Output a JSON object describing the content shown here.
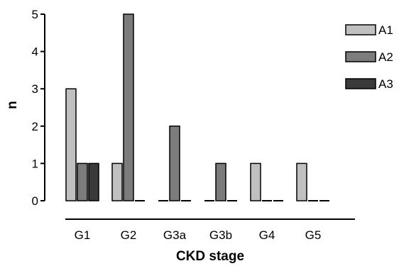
{
  "chart_data": {
    "type": "bar",
    "xlabel": "CKD stage",
    "ylabel": "n",
    "categories": [
      "G1",
      "G2",
      "G3a",
      "G3b",
      "G4",
      "G5"
    ],
    "series": [
      {
        "name": "A1",
        "values": [
          3,
          1,
          0,
          0,
          1,
          1
        ],
        "color": "#c0c0c0"
      },
      {
        "name": "A2",
        "values": [
          1,
          5,
          2,
          1,
          0,
          0
        ],
        "color": "#7c7c7c"
      },
      {
        "name": "A3",
        "values": [
          1,
          0,
          0,
          0,
          0,
          0
        ],
        "color": "#3a3a3a"
      }
    ],
    "ylim": [
      0,
      5
    ],
    "yticks": [
      0,
      1,
      2,
      3,
      4,
      5
    ],
    "grid": false,
    "legend_position": "top-right"
  }
}
